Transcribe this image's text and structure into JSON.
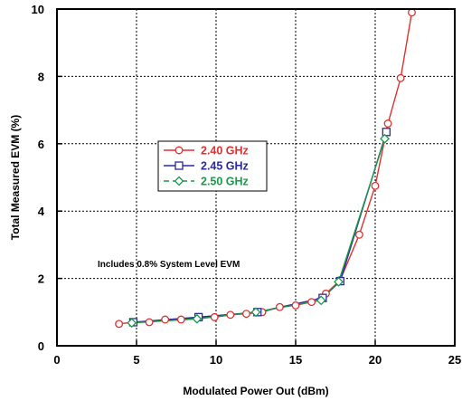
{
  "chart_data": {
    "type": "line",
    "title": "",
    "xlabel": "Modulated Power Out (dBm)",
    "ylabel": "Total Measured EVM (%)",
    "xlim": [
      0,
      25
    ],
    "ylim": [
      0,
      10
    ],
    "xticks": [
      0,
      5,
      10,
      15,
      20,
      25
    ],
    "yticks": [
      0,
      2,
      4,
      6,
      8,
      10
    ],
    "grid": true,
    "legend": "center-left",
    "annotation": "Includes 0.8% System Level EVM",
    "series": [
      {
        "name": "2.40 GHz",
        "color": "#e03030",
        "marker": "circle",
        "x": [
          3.9,
          4.8,
          5.8,
          6.8,
          7.8,
          8.9,
          9.9,
          10.9,
          11.9,
          12.9,
          14.0,
          15.0,
          16.0,
          16.9,
          17.8,
          19.0,
          20.0,
          20.8,
          21.6,
          22.3
        ],
        "y": [
          0.65,
          0.7,
          0.7,
          0.78,
          0.78,
          0.85,
          0.85,
          0.92,
          0.95,
          1.0,
          1.15,
          1.2,
          1.3,
          1.55,
          1.95,
          3.3,
          4.75,
          6.6,
          7.95,
          9.9
        ]
      },
      {
        "name": "2.45 GHz",
        "color": "#2a2a9a",
        "marker": "square",
        "x": [
          4.8,
          8.9,
          12.6,
          16.7,
          17.8,
          20.7
        ],
        "y": [
          0.7,
          0.85,
          1.0,
          1.42,
          1.92,
          6.35
        ]
      },
      {
        "name": "2.50 GHz",
        "color": "#1a9a4a",
        "marker": "diamond",
        "x": [
          4.7,
          8.8,
          12.5,
          16.6,
          17.7,
          20.6
        ],
        "y": [
          0.68,
          0.8,
          1.0,
          1.35,
          1.9,
          6.15
        ]
      }
    ]
  }
}
